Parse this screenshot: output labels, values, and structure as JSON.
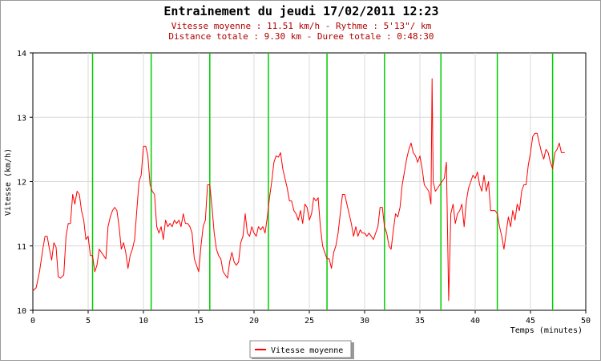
{
  "chart_data": {
    "type": "line",
    "title": "Entrainement du jeudi 17/02/2011 12:23",
    "subtitle_lines": [
      "Vitesse moyenne : 11.51 km/h - Rythme : 5'13\"/ km",
      "Distance totale : 9.30 km - Duree totale : 0:48:30"
    ],
    "xlabel": "Temps (minutes)",
    "ylabel": "Vitesse (km/h)",
    "xlim": [
      0,
      50
    ],
    "ylim": [
      10,
      14
    ],
    "xticks": [
      "0",
      "5",
      "10",
      "15",
      "20",
      "25",
      "30",
      "35",
      "40",
      "45",
      "50"
    ],
    "yticks": [
      "10",
      "11",
      "12",
      "13",
      "14"
    ],
    "grid": true,
    "legend_position": "bottom",
    "series_color": "#ff0000",
    "marker_color": "#00cc00",
    "km_markers": [
      5.4,
      10.7,
      16.0,
      21.3,
      26.6,
      31.8,
      36.9,
      42.0,
      47.0
    ],
    "series": [
      {
        "name": "Vitesse moyenne",
        "points": [
          [
            0.0,
            10.3
          ],
          [
            0.3,
            10.35
          ],
          [
            0.6,
            10.6
          ],
          [
            0.9,
            10.95
          ],
          [
            1.1,
            11.15
          ],
          [
            1.3,
            11.15
          ],
          [
            1.5,
            10.95
          ],
          [
            1.7,
            10.78
          ],
          [
            1.9,
            11.05
          ],
          [
            2.1,
            10.98
          ],
          [
            2.3,
            10.52
          ],
          [
            2.5,
            10.5
          ],
          [
            2.8,
            10.55
          ],
          [
            3.0,
            11.15
          ],
          [
            3.2,
            11.35
          ],
          [
            3.4,
            11.35
          ],
          [
            3.6,
            11.8
          ],
          [
            3.8,
            11.65
          ],
          [
            4.0,
            11.85
          ],
          [
            4.2,
            11.8
          ],
          [
            4.4,
            11.55
          ],
          [
            4.6,
            11.4
          ],
          [
            4.8,
            11.1
          ],
          [
            5.0,
            11.15
          ],
          [
            5.2,
            10.85
          ],
          [
            5.4,
            10.85
          ],
          [
            5.6,
            10.6
          ],
          [
            5.8,
            10.7
          ],
          [
            6.0,
            10.95
          ],
          [
            6.2,
            10.9
          ],
          [
            6.4,
            10.85
          ],
          [
            6.6,
            10.8
          ],
          [
            6.8,
            11.3
          ],
          [
            7.0,
            11.45
          ],
          [
            7.2,
            11.55
          ],
          [
            7.4,
            11.6
          ],
          [
            7.6,
            11.55
          ],
          [
            7.8,
            11.3
          ],
          [
            8.0,
            10.95
          ],
          [
            8.2,
            11.05
          ],
          [
            8.4,
            10.9
          ],
          [
            8.6,
            10.65
          ],
          [
            8.8,
            10.85
          ],
          [
            9.0,
            10.95
          ],
          [
            9.2,
            11.1
          ],
          [
            9.4,
            11.55
          ],
          [
            9.6,
            12.0
          ],
          [
            9.8,
            12.1
          ],
          [
            10.0,
            12.55
          ],
          [
            10.2,
            12.55
          ],
          [
            10.4,
            12.4
          ],
          [
            10.6,
            11.95
          ],
          [
            10.8,
            11.85
          ],
          [
            11.0,
            11.8
          ],
          [
            11.2,
            11.3
          ],
          [
            11.4,
            11.2
          ],
          [
            11.6,
            11.3
          ],
          [
            11.8,
            11.1
          ],
          [
            12.0,
            11.4
          ],
          [
            12.2,
            11.3
          ],
          [
            12.4,
            11.35
          ],
          [
            12.6,
            11.3
          ],
          [
            12.8,
            11.4
          ],
          [
            13.0,
            11.35
          ],
          [
            13.2,
            11.4
          ],
          [
            13.4,
            11.3
          ],
          [
            13.6,
            11.5
          ],
          [
            13.8,
            11.35
          ],
          [
            14.0,
            11.35
          ],
          [
            14.2,
            11.3
          ],
          [
            14.4,
            11.2
          ],
          [
            14.6,
            10.8
          ],
          [
            14.8,
            10.7
          ],
          [
            15.0,
            10.6
          ],
          [
            15.2,
            11.0
          ],
          [
            15.4,
            11.3
          ],
          [
            15.6,
            11.4
          ],
          [
            15.8,
            11.95
          ],
          [
            16.0,
            11.95
          ],
          [
            16.2,
            11.6
          ],
          [
            16.4,
            11.2
          ],
          [
            16.6,
            10.95
          ],
          [
            16.8,
            10.85
          ],
          [
            17.0,
            10.8
          ],
          [
            17.2,
            10.6
          ],
          [
            17.4,
            10.55
          ],
          [
            17.6,
            10.5
          ],
          [
            17.8,
            10.75
          ],
          [
            18.0,
            10.9
          ],
          [
            18.2,
            10.75
          ],
          [
            18.4,
            10.7
          ],
          [
            18.6,
            10.75
          ],
          [
            18.8,
            11.05
          ],
          [
            19.0,
            11.15
          ],
          [
            19.2,
            11.5
          ],
          [
            19.4,
            11.2
          ],
          [
            19.6,
            11.15
          ],
          [
            19.8,
            11.3
          ],
          [
            20.0,
            11.2
          ],
          [
            20.2,
            11.15
          ],
          [
            20.4,
            11.3
          ],
          [
            20.6,
            11.25
          ],
          [
            20.8,
            11.3
          ],
          [
            21.0,
            11.2
          ],
          [
            21.2,
            11.45
          ],
          [
            21.4,
            11.75
          ],
          [
            21.6,
            12.0
          ],
          [
            21.8,
            12.3
          ],
          [
            22.0,
            12.4
          ],
          [
            22.2,
            12.38
          ],
          [
            22.4,
            12.45
          ],
          [
            22.6,
            12.2
          ],
          [
            22.8,
            12.05
          ],
          [
            23.0,
            11.9
          ],
          [
            23.2,
            11.7
          ],
          [
            23.4,
            11.7
          ],
          [
            23.6,
            11.55
          ],
          [
            23.8,
            11.5
          ],
          [
            24.0,
            11.4
          ],
          [
            24.2,
            11.55
          ],
          [
            24.4,
            11.35
          ],
          [
            24.6,
            11.65
          ],
          [
            24.8,
            11.6
          ],
          [
            25.0,
            11.4
          ],
          [
            25.2,
            11.5
          ],
          [
            25.4,
            11.75
          ],
          [
            25.6,
            11.7
          ],
          [
            25.8,
            11.75
          ],
          [
            26.0,
            11.3
          ],
          [
            26.2,
            11.0
          ],
          [
            26.4,
            10.9
          ],
          [
            26.6,
            10.8
          ],
          [
            26.8,
            10.8
          ],
          [
            27.0,
            10.65
          ],
          [
            27.2,
            10.9
          ],
          [
            27.4,
            11.0
          ],
          [
            27.6,
            11.2
          ],
          [
            27.8,
            11.5
          ],
          [
            28.0,
            11.8
          ],
          [
            28.2,
            11.8
          ],
          [
            28.4,
            11.65
          ],
          [
            28.6,
            11.5
          ],
          [
            28.8,
            11.35
          ],
          [
            29.0,
            11.15
          ],
          [
            29.2,
            11.3
          ],
          [
            29.4,
            11.15
          ],
          [
            29.6,
            11.25
          ],
          [
            29.8,
            11.2
          ],
          [
            30.0,
            11.2
          ],
          [
            30.2,
            11.15
          ],
          [
            30.4,
            11.2
          ],
          [
            30.6,
            11.15
          ],
          [
            30.8,
            11.1
          ],
          [
            31.0,
            11.2
          ],
          [
            31.2,
            11.3
          ],
          [
            31.4,
            11.6
          ],
          [
            31.6,
            11.6
          ],
          [
            31.8,
            11.3
          ],
          [
            32.0,
            11.2
          ],
          [
            32.2,
            11.0
          ],
          [
            32.4,
            10.95
          ],
          [
            32.6,
            11.25
          ],
          [
            32.8,
            11.5
          ],
          [
            33.0,
            11.45
          ],
          [
            33.2,
            11.6
          ],
          [
            33.4,
            11.95
          ],
          [
            33.6,
            12.15
          ],
          [
            33.8,
            12.35
          ],
          [
            34.0,
            12.5
          ],
          [
            34.2,
            12.6
          ],
          [
            34.4,
            12.45
          ],
          [
            34.6,
            12.4
          ],
          [
            34.8,
            12.3
          ],
          [
            35.0,
            12.4
          ],
          [
            35.2,
            12.2
          ],
          [
            35.4,
            11.95
          ],
          [
            35.6,
            11.9
          ],
          [
            35.8,
            11.85
          ],
          [
            36.0,
            11.65
          ],
          [
            36.1,
            13.6
          ],
          [
            36.2,
            12.0
          ],
          [
            36.4,
            11.85
          ],
          [
            36.6,
            11.9
          ],
          [
            36.8,
            11.95
          ],
          [
            37.0,
            12.0
          ],
          [
            37.2,
            12.05
          ],
          [
            37.4,
            12.3
          ],
          [
            37.6,
            10.15
          ],
          [
            37.8,
            11.5
          ],
          [
            38.0,
            11.65
          ],
          [
            38.2,
            11.35
          ],
          [
            38.4,
            11.5
          ],
          [
            38.6,
            11.55
          ],
          [
            38.8,
            11.65
          ],
          [
            39.0,
            11.3
          ],
          [
            39.2,
            11.7
          ],
          [
            39.4,
            11.9
          ],
          [
            39.6,
            12.0
          ],
          [
            39.8,
            12.1
          ],
          [
            40.0,
            12.05
          ],
          [
            40.2,
            12.15
          ],
          [
            40.4,
            11.95
          ],
          [
            40.6,
            11.85
          ],
          [
            40.8,
            12.1
          ],
          [
            41.0,
            11.85
          ],
          [
            41.2,
            12.0
          ],
          [
            41.4,
            11.55
          ],
          [
            41.6,
            11.55
          ],
          [
            41.8,
            11.55
          ],
          [
            42.0,
            11.5
          ],
          [
            42.2,
            11.3
          ],
          [
            42.4,
            11.15
          ],
          [
            42.6,
            10.95
          ],
          [
            42.8,
            11.2
          ],
          [
            43.0,
            11.45
          ],
          [
            43.2,
            11.3
          ],
          [
            43.4,
            11.55
          ],
          [
            43.6,
            11.4
          ],
          [
            43.8,
            11.65
          ],
          [
            44.0,
            11.55
          ],
          [
            44.2,
            11.85
          ],
          [
            44.4,
            11.95
          ],
          [
            44.6,
            11.95
          ],
          [
            44.8,
            12.25
          ],
          [
            45.0,
            12.45
          ],
          [
            45.2,
            12.7
          ],
          [
            45.4,
            12.75
          ],
          [
            45.6,
            12.75
          ],
          [
            45.8,
            12.6
          ],
          [
            46.0,
            12.45
          ],
          [
            46.2,
            12.35
          ],
          [
            46.4,
            12.5
          ],
          [
            46.6,
            12.45
          ],
          [
            46.8,
            12.3
          ],
          [
            47.0,
            12.2
          ],
          [
            47.2,
            12.45
          ],
          [
            47.4,
            12.5
          ],
          [
            47.6,
            12.6
          ],
          [
            47.8,
            12.45
          ],
          [
            48.1,
            12.45
          ]
        ]
      }
    ]
  }
}
